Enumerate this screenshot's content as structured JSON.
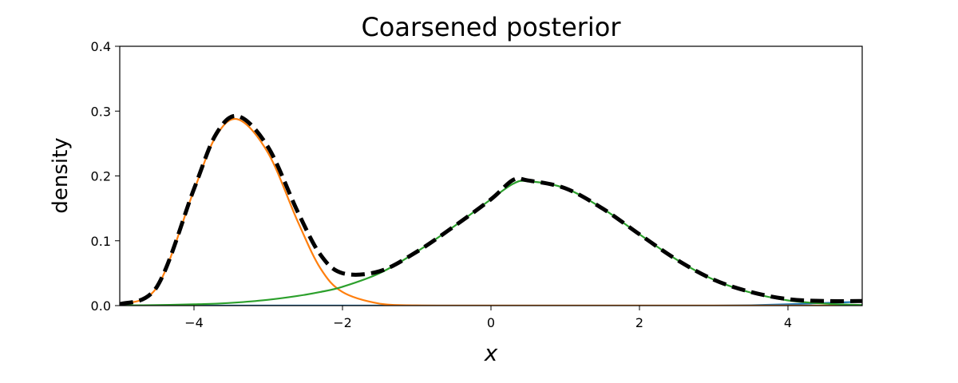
{
  "chart_data": {
    "type": "line",
    "title": "Coarsened posterior",
    "xlabel": "x",
    "ylabel": "density",
    "xlim": [
      -5,
      5
    ],
    "ylim": [
      0,
      0.4
    ],
    "x_ticks": [
      -4,
      -2,
      0,
      2,
      4
    ],
    "x_tick_labels": [
      "−4",
      "−2",
      "0",
      "2",
      "4"
    ],
    "y_ticks": [
      0.0,
      0.1,
      0.2,
      0.3,
      0.4
    ],
    "y_tick_labels": [
      "0.0",
      "0.1",
      "0.2",
      "0.3",
      "0.4"
    ],
    "grid": false,
    "x": [
      -5.0,
      -4.5,
      -4.0,
      -3.7,
      -3.4,
      -3.0,
      -2.6,
      -2.3,
      -2.0,
      -1.5,
      -1.0,
      -0.5,
      0.0,
      0.3,
      0.5,
      1.0,
      1.5,
      2.0,
      2.5,
      3.0,
      3.5,
      4.0,
      4.5,
      5.0
    ],
    "series": [
      {
        "color": "#1f77b4",
        "style": "solid",
        "values": [
          0,
          0,
          0,
          0,
          0,
          0,
          0,
          0,
          0,
          0,
          0,
          0,
          0,
          0,
          0,
          0,
          0,
          0,
          0,
          0,
          0.0005,
          0.002,
          0.004,
          0.006
        ]
      },
      {
        "color": "#ff7f0e",
        "style": "solid",
        "values": [
          0.002,
          0.028,
          0.178,
          0.262,
          0.287,
          0.235,
          0.129,
          0.058,
          0.021,
          0.003,
          0.0003,
          0,
          0,
          0,
          0,
          0,
          0,
          0,
          0,
          0,
          0,
          0,
          0,
          0
        ]
      },
      {
        "color": "#2ca02c",
        "style": "solid",
        "values": [
          0.0003,
          0.0008,
          0.002,
          0.003,
          0.005,
          0.009,
          0.015,
          0.021,
          0.029,
          0.05,
          0.083,
          0.122,
          0.164,
          0.188,
          0.192,
          0.181,
          0.15,
          0.11,
          0.071,
          0.04,
          0.02,
          0.008,
          0.003,
          0.001
        ]
      },
      {
        "color": "#000000",
        "style": "dashed",
        "values": [
          0.002,
          0.029,
          0.18,
          0.265,
          0.292,
          0.244,
          0.144,
          0.079,
          0.05,
          0.053,
          0.083,
          0.122,
          0.164,
          0.194,
          0.193,
          0.181,
          0.15,
          0.11,
          0.071,
          0.04,
          0.021,
          0.01,
          0.007,
          0.007
        ]
      }
    ]
  }
}
